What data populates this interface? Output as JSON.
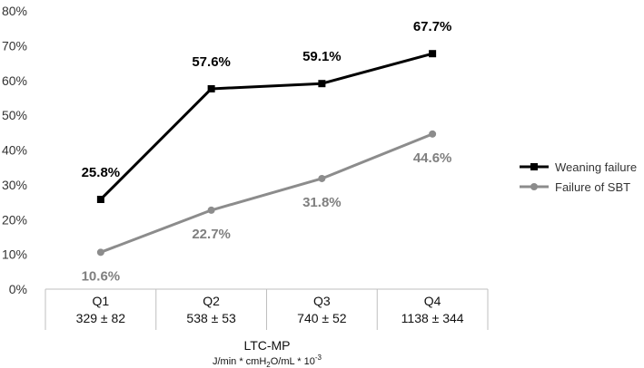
{
  "chart_data": {
    "type": "line",
    "categories": [
      "Q1",
      "Q2",
      "Q3",
      "Q4"
    ],
    "category_sublabels": [
      "329 ± 82",
      "538 ± 53",
      "740 ± 52",
      "1138 ± 344"
    ],
    "yticks": [
      "0%",
      "10%",
      "20%",
      "30%",
      "40%",
      "50%",
      "60%",
      "70%",
      "80%"
    ],
    "ylim": [
      0,
      80
    ],
    "xlabel": "LTC-MP",
    "xlabel_units": {
      "pre": "J/min * cmH",
      "sub": "2",
      "mid": "O/mL * 10",
      "sup": "-3"
    },
    "legend_position": "right",
    "series": [
      {
        "name": "Weaning failure",
        "values": [
          25.8,
          57.6,
          59.1,
          67.7
        ],
        "labels": [
          "25.8%",
          "57.6%",
          "59.1%",
          "67.7%"
        ],
        "color": "#000000",
        "marker": "square"
      },
      {
        "name": "Failure of SBT",
        "values": [
          10.6,
          22.7,
          31.8,
          44.6
        ],
        "labels": [
          "10.6%",
          "22.7%",
          "31.8%",
          "44.6%"
        ],
        "color": "#8c8c8c",
        "marker": "circle"
      }
    ]
  }
}
